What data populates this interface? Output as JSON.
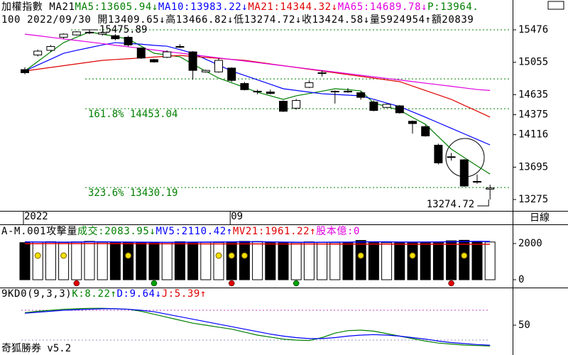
{
  "chart_data": [
    {
      "type": "candlestick",
      "legend": [
        {
          "text": "加權指數 MA21",
          "color": "#000000"
        },
        {
          "text": "MA5:13605.94↓",
          "color": "#008000"
        },
        {
          "text": "MA10:13983.22↓",
          "color": "#0000ff"
        },
        {
          "text": "MA21:14344.32↓",
          "color": "#e00000"
        },
        {
          "text": "MA65:14689.78↓",
          "color": "#e000e0"
        },
        {
          "text": "P:13964.",
          "color": "#008000"
        }
      ],
      "info": "100 2022/09/30 開13409.65↓高13466.82↓低13274.72↓收13424.58↓量5924954↑額20839",
      "categories": [
        "2022",
        null,
        null,
        null,
        null,
        null,
        null,
        null,
        null,
        null,
        null,
        null,
        null,
        null,
        null,
        null,
        "09",
        null,
        null,
        null,
        null,
        null,
        null,
        null,
        null,
        null,
        null,
        null,
        null,
        null,
        null,
        null,
        null,
        null,
        null,
        null,
        null
      ],
      "open": [
        14960,
        15150,
        15210,
        15380,
        15410,
        15440,
        15420,
        15400,
        15380,
        15240,
        15090,
        15120,
        15260,
        15190,
        14930,
        14930,
        14980,
        14780,
        14670,
        14670,
        14550,
        14460,
        14730,
        14910,
        14670,
        14680,
        14660,
        14540,
        14470,
        14490,
        14290,
        14220,
        13980,
        13830,
        13790,
        13510,
        13409.65
      ],
      "high": [
        14990,
        15220,
        15280,
        15430,
        15460,
        15475.89,
        15450,
        15420,
        15400,
        15250,
        15100,
        15210,
        15290,
        15200,
        14960,
        15110,
        14990,
        14800,
        14700,
        14700,
        14560,
        14580,
        14820,
        14950,
        14690,
        14720,
        14680,
        14560,
        14520,
        14500,
        14300,
        14240,
        14000,
        13880,
        13800,
        13600,
        13466.82
      ],
      "low": [
        14900,
        15130,
        15190,
        15360,
        15400,
        15420,
        15400,
        15340,
        15260,
        15100,
        15050,
        15110,
        15240,
        14830,
        14920,
        14920,
        14800,
        14690,
        14640,
        14640,
        14410,
        14440,
        14720,
        14870,
        14520,
        14660,
        14570,
        14420,
        14460,
        14390,
        14130,
        14090,
        13730,
        13780,
        13440,
        13480,
        13274.72
      ],
      "close": [
        14920,
        15200,
        15260,
        15420,
        15450,
        15445,
        15440,
        15360,
        15280,
        15110,
        15060,
        15190,
        15250,
        14950,
        14950,
        15080,
        14820,
        14700,
        14680,
        14650,
        14420,
        14560,
        14790,
        14920,
        14680,
        14670,
        14600,
        14430,
        14510,
        14400,
        14260,
        14100,
        13750,
        13820,
        13450,
        13500,
        13424.58
      ],
      "series": [
        {
          "color": "#008000",
          "values": [
            14942,
            15065,
            15190,
            15310,
            15380,
            15448,
            15420,
            15390,
            15356,
            15265,
            15172,
            15150,
            15126,
            15030,
            14940,
            14850,
            14790,
            14730,
            14666,
            14620,
            14574,
            14620,
            14650,
            14680,
            14712,
            14700,
            14684,
            14527,
            14480,
            14435,
            14340,
            14251,
            14090,
            13929,
            13820,
            13710,
            13605.94
          ]
        },
        {
          "color": "#0000ff",
          "values": [
            14942,
            15020,
            15095,
            15172,
            15210,
            15245,
            15280,
            15310,
            15300,
            15290,
            15275,
            15264,
            15220,
            15172,
            15095,
            15020,
            14942,
            14885,
            14827,
            14770,
            14712,
            14690,
            14668,
            14647,
            14638,
            14629,
            14620,
            14574,
            14527,
            14481,
            14412,
            14343,
            14271,
            14199,
            14127,
            14055,
            13983.22
          ]
        },
        {
          "color": "#e00000",
          "values": [
            14942,
            14965,
            14988,
            15011,
            15034,
            15057,
            15080,
            15091,
            15101,
            15112,
            15123,
            15133,
            15144,
            15131,
            15118,
            15106,
            15093,
            15080,
            15057,
            15034,
            15011,
            14988,
            14965,
            14942,
            14919,
            14896,
            14873,
            14850,
            14827,
            14804,
            14747,
            14689,
            14632,
            14574,
            14497,
            14421,
            14344.32
          ]
        },
        {
          "color": "#e000e0",
          "values": [
            15420,
            15400,
            15379,
            15358,
            15338,
            15318,
            15297,
            15276,
            15256,
            15236,
            15215,
            15194,
            15174,
            15154,
            15133,
            15112,
            15092,
            15072,
            15051,
            15030,
            15010,
            14990,
            14969,
            14948,
            14928,
            14908,
            14887,
            14866,
            14846,
            14826,
            14805,
            14784,
            14764,
            14744,
            14723,
            14702,
            14689.78
          ]
        }
      ],
      "ylim": [
        13137,
        15863
      ],
      "yticks": [
        15476,
        15055,
        14635,
        14375,
        14116,
        13695,
        13275
      ],
      "ref_color": "#008000",
      "ref_lines": [
        {
          "value": 15475.89
        },
        {
          "value": 14840
        },
        {
          "value": 14453.04,
          "label": "161.8% 14453.04"
        },
        {
          "value": 13430.19,
          "label": "323.6% 13430.19"
        }
      ]
    },
    {
      "type": "bar",
      "legend": [
        {
          "text": "A-M.001攻擊量",
          "color": "#000000"
        },
        {
          "text": "成交:2083.95↓",
          "color": "#008000"
        },
        {
          "text": "MV5:2110.42↑",
          "color": "#0000ff"
        },
        {
          "text": "MV21:1961.22↑",
          "color": "#e00000"
        },
        {
          "text": "股本億:0",
          "color": "#e000e0"
        }
      ],
      "values": [
        2050,
        2080,
        2100,
        2060,
        2090,
        2120,
        2070,
        2080,
        2060,
        2050,
        2070,
        2060,
        2100,
        2080,
        2070,
        2060,
        2100,
        2120,
        2110,
        2050,
        2060,
        2050,
        2090,
        2070,
        2050,
        2060,
        2170,
        2100,
        2050,
        2060,
        2080,
        2070,
        2080,
        2150,
        2180,
        2120,
        2083.95
      ],
      "series": [
        {
          "color": "#0000ff",
          "values": [
            2090,
            2085,
            2080,
            2075,
            2080,
            2090,
            2095,
            2085,
            2080,
            2075,
            2070,
            2065,
            2070,
            2075,
            2080,
            2085,
            2090,
            2095,
            2100,
            2090,
            2080,
            2070,
            2065,
            2070,
            2075,
            2080,
            2090,
            2095,
            2090,
            2085,
            2080,
            2085,
            2090,
            2100,
            2110,
            2115,
            2110.42
          ]
        },
        {
          "color": "#e00000",
          "values": [
            1990,
            1992,
            1994,
            1995,
            1996,
            1995,
            1994,
            1992,
            1990,
            1988,
            1986,
            1985,
            1984,
            1983,
            1982,
            1981,
            1980,
            1979,
            1978,
            1977,
            1976,
            1975,
            1974,
            1973,
            1972,
            1971,
            1970,
            1969,
            1968,
            1967,
            1966,
            1965,
            1964,
            1963,
            1962,
            1962,
            1961.22
          ]
        }
      ],
      "ylim": [
        -392,
        2980
      ],
      "yticks": [
        0,
        2000
      ],
      "yellow_dots": [
        1,
        3,
        8,
        15,
        16,
        17,
        26,
        30,
        34
      ],
      "signal_dots": [
        {
          "index": 4,
          "color": "#e00000"
        },
        {
          "index": 10,
          "color": "#00a000"
        },
        {
          "index": 16,
          "color": "#e00000"
        },
        {
          "index": 21,
          "color": "#00a000"
        },
        {
          "index": 33,
          "color": "#e00000"
        }
      ]
    },
    {
      "type": "line",
      "legend": [
        {
          "text": "9KD0(9,3,3)",
          "color": "#000000"
        },
        {
          "text": "K:8.22↑",
          "color": "#008000"
        },
        {
          "text": "D:9.64↓",
          "color": "#0000ff"
        },
        {
          "text": "J:5.39↑",
          "color": "#e00000"
        }
      ],
      "series": [
        {
          "color": "#008000",
          "values": [
            75,
            78,
            80,
            82,
            83,
            84,
            84,
            83,
            82,
            78,
            72,
            66,
            60,
            54,
            50,
            46,
            42,
            36,
            30,
            26,
            22,
            20,
            19,
            25,
            34,
            39,
            40,
            38,
            33,
            28,
            23,
            18,
            14,
            12,
            10,
            9,
            8.22
          ]
        },
        {
          "color": "#0000ff",
          "values": [
            74,
            76,
            78,
            80,
            81,
            82,
            83,
            83,
            82,
            80,
            77,
            72,
            67,
            62,
            57,
            52,
            47,
            42,
            37,
            32,
            28,
            25,
            23,
            23,
            25,
            28,
            30,
            31,
            30,
            28,
            25,
            22,
            18,
            15,
            13,
            11,
            9.64
          ]
        }
      ],
      "ylim": [
        -10,
        107.1
      ],
      "yticks": [
        50
      ],
      "ref_lines": [
        {
          "value": 80,
          "color": "#c040c0"
        },
        {
          "value": 20,
          "color": "#9090c0"
        }
      ]
    }
  ],
  "period": "日線",
  "footer": "奇狐勝券 v5.2"
}
